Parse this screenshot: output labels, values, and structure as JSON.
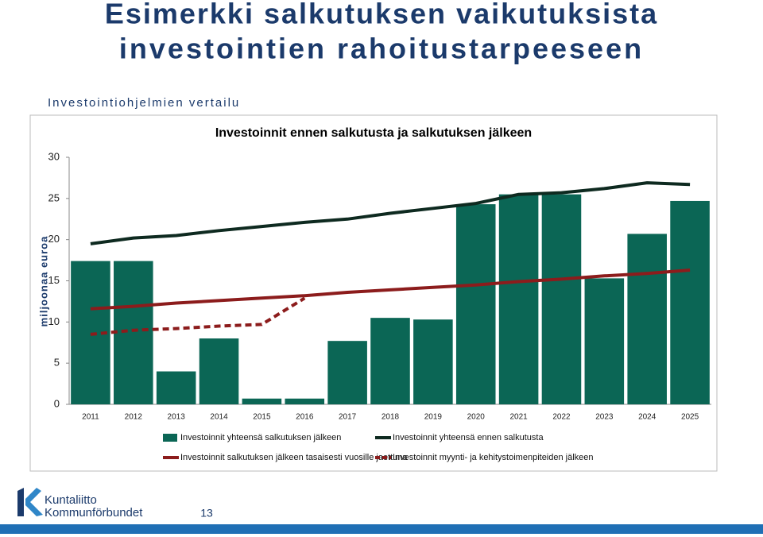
{
  "slide": {
    "title": [
      "Esimerkki salkutuksen  vaikutuksista",
      "investointien rahoitustarpeeseen"
    ],
    "subtitle": "Investointiohjelmien vertailu",
    "logo": [
      "Kuntaliitto",
      "Kommunförbundet"
    ],
    "page_number": "13"
  },
  "chart_data": {
    "type": "bar",
    "title": "Investoinnit ennen salkutusta ja salkutuksen jälkeen",
    "y_label": "miljoonaa euroa",
    "categories": [
      "2011",
      "2012",
      "2013",
      "2014",
      "2015",
      "2016",
      "2017",
      "2018",
      "2019",
      "2020",
      "2021",
      "2022",
      "2023",
      "2024",
      "2025"
    ],
    "series": [
      {
        "name": "Investoinnit yhteensä salkutuksen jälkeen",
        "type": "bar",
        "color": "#0b6655",
        "values": [
          17.4,
          17.4,
          4.0,
          8.0,
          0.7,
          0.7,
          7.7,
          10.5,
          10.3,
          24.3,
          25.5,
          25.5,
          15.3,
          20.7,
          24.7
        ]
      },
      {
        "name": "Investoinnit yhteensä ennen salkutusta",
        "type": "line",
        "color": "#0e2a20",
        "dashed": false,
        "values": [
          19.5,
          20.2,
          20.5,
          21.1,
          21.6,
          22.1,
          22.5,
          23.2,
          23.8,
          24.4,
          25.5,
          25.7,
          26.2,
          26.9,
          26.7
        ]
      },
      {
        "name": "Investoinnit salkutuksen jälkeen tasaisesti vuosille jaettuna",
        "type": "line",
        "color": "#8c1c1c",
        "dashed": false,
        "values": [
          11.6,
          11.9,
          12.3,
          12.6,
          12.9,
          13.2,
          13.6,
          13.9,
          14.2,
          14.5,
          14.9,
          15.2,
          15.6,
          15.9,
          16.3
        ]
      },
      {
        "name": "Investoinnit myynti- ja kehitystoimenpiteiden jälkeen",
        "type": "line",
        "color": "#8c1c1c",
        "dashed": true,
        "values": [
          8.5,
          9.0,
          9.2,
          9.5,
          9.7,
          12.9,
          null,
          null,
          null,
          null,
          null,
          null,
          null,
          null,
          null
        ]
      }
    ],
    "ylim": [
      0,
      30
    ],
    "yticks": [
      0,
      5,
      10,
      15,
      20,
      25,
      30
    ],
    "grid": false
  }
}
